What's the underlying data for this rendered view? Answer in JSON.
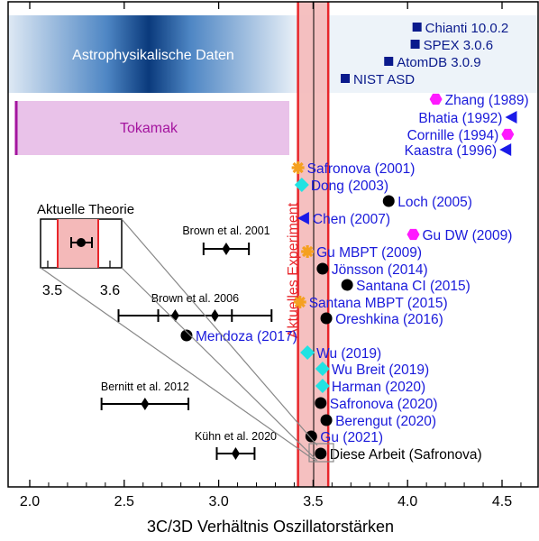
{
  "colors": {
    "label_blue": "#1a1adb",
    "experiment_red": "#e8262b",
    "experiment_fill": "#f4b9b9",
    "astro_dark": "#0a3a7c",
    "astro_light": "#eaf1f8",
    "tokamak_fill": "#e9c2e9",
    "tokamak_edge": "#a4149f",
    "navy_square": "#0a1a8c",
    "magenta": "#ff1aff",
    "blue_triangle": "#1a1ae8",
    "orange_star": "#f5a020",
    "cyan_diamond": "#21e2e2",
    "black": "#000000"
  },
  "legend_band": {
    "astro_label": "Astrophysikalische Daten",
    "tokamak_label": "Tokamak",
    "experiment_label": "Aktuelles Experiment",
    "experiment_range": [
      3.42,
      3.58
    ],
    "experiment_center": 3.5
  },
  "inset": {
    "title": "Aktuelle Theorie",
    "tick_labels": [
      "3.5",
      "3.6"
    ],
    "point": 3.54,
    "err_lo": 3.525,
    "err_hi": 3.555
  },
  "chart_data": {
    "type": "scatter",
    "title": "",
    "xlabel": "3C/3D Verhältnis Oszillatorstärken",
    "ylabel": "",
    "xlim": [
      1.9,
      4.75
    ],
    "xticks": [
      "2.0",
      "2.5",
      "3.0",
      "3.5",
      "4.0",
      "4.5"
    ],
    "databases": [
      {
        "label": "Chianti 10.0.2",
        "x": 4.05,
        "marker": "square"
      },
      {
        "label": "SPEX 3.0.6",
        "x": 4.04,
        "marker": "square"
      },
      {
        "label": "AtomDB 3.0.9",
        "x": 3.9,
        "marker": "square"
      },
      {
        "label": "NIST ASD",
        "x": 3.67,
        "marker": "square"
      }
    ],
    "theory": [
      {
        "label": "Zhang (1989)",
        "x": 4.15,
        "marker": "hexagon"
      },
      {
        "label": "Bhatia (1992)",
        "x": 4.55,
        "marker": "triangle"
      },
      {
        "label": "Cornille (1994)",
        "x": 4.53,
        "marker": "hexagon"
      },
      {
        "label": "Kaastra (1996)",
        "x": 4.52,
        "marker": "triangle"
      },
      {
        "label": "Safronova (2001)",
        "x": 3.42,
        "marker": "star"
      },
      {
        "label": "Dong (2003)",
        "x": 3.44,
        "marker": "diamond"
      },
      {
        "label": "Loch (2005)",
        "x": 3.9,
        "marker": "circle"
      },
      {
        "label": "Chen (2007)",
        "x": 3.45,
        "marker": "triangle"
      },
      {
        "label": "Gu DW (2009)",
        "x": 4.03,
        "marker": "hexagon"
      },
      {
        "label": "Gu MBPT (2009)",
        "x": 3.47,
        "marker": "star"
      },
      {
        "label": "Jönsson (2014)",
        "x": 3.55,
        "marker": "circle"
      },
      {
        "label": "Santana CI (2015)",
        "x": 3.68,
        "marker": "circle"
      },
      {
        "label": "Santana MBPT (2015)",
        "x": 3.43,
        "marker": "star"
      },
      {
        "label": "Oreshkina (2016)",
        "x": 3.57,
        "marker": "circle"
      },
      {
        "label": "Mendoza (2017)",
        "x": 2.83,
        "marker": "circle"
      },
      {
        "label": "Wu (2019)",
        "x": 3.47,
        "marker": "diamond"
      },
      {
        "label": "Wu Breit (2019)",
        "x": 3.55,
        "marker": "diamond"
      },
      {
        "label": "Harman (2020)",
        "x": 3.55,
        "marker": "diamond"
      },
      {
        "label": "Safronova (2020)",
        "x": 3.54,
        "marker": "circle"
      },
      {
        "label": "Berengut (2020)",
        "x": 3.57,
        "marker": "circle"
      },
      {
        "label": "Gu (2021)",
        "x": 3.49,
        "marker": "circle"
      },
      {
        "label": "Diese Arbeit (Safronova)",
        "x": 3.54,
        "marker": "circle"
      }
    ],
    "experiments": [
      {
        "label": "Brown et al. 2001",
        "points": [
          {
            "x": 3.04,
            "err": [
              2.92,
              3.16
            ]
          }
        ]
      },
      {
        "label": "Brown et al. 2006",
        "points": [
          {
            "x": 2.77,
            "err": [
              2.47,
              3.07
            ]
          },
          {
            "x": 2.98,
            "err": [
              2.68,
              3.28
            ]
          }
        ]
      },
      {
        "label": "Bernitt et al. 2012",
        "points": [
          {
            "x": 2.61,
            "err": [
              2.38,
              2.84
            ]
          }
        ]
      },
      {
        "label": "Kühn et al. 2020",
        "points": [
          {
            "x": 3.09,
            "err": [
              2.99,
              3.19
            ]
          }
        ]
      }
    ]
  }
}
